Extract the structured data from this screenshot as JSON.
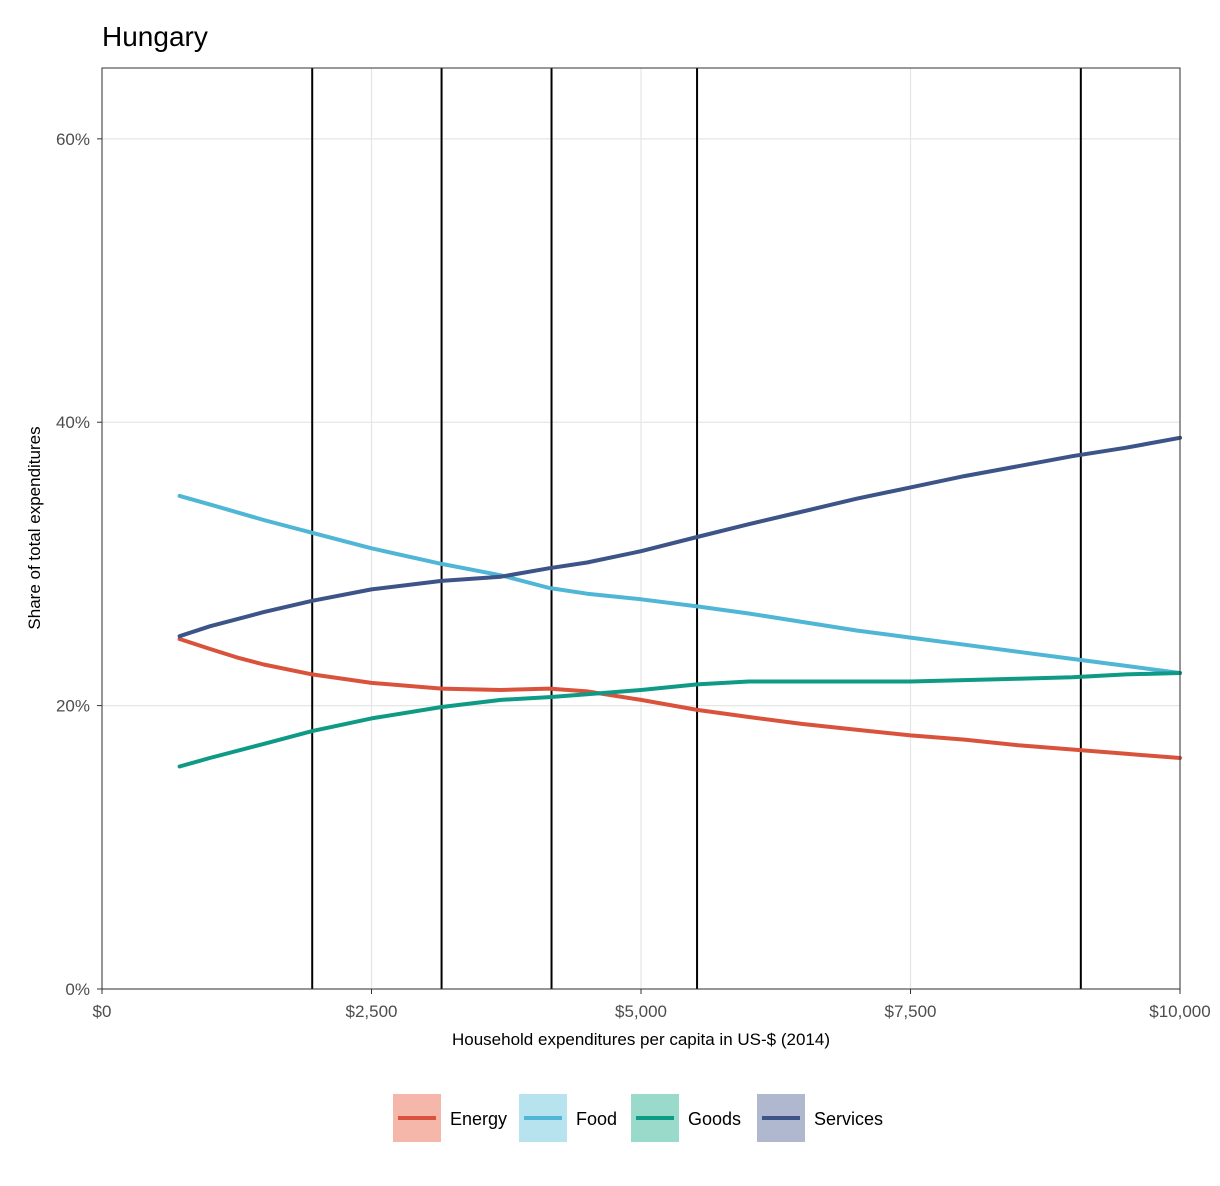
{
  "chart_data": {
    "type": "line",
    "title": "Hungary",
    "xlabel": "Household expenditures per capita in US-$ (2014)",
    "ylabel": "Share of total expenditures",
    "xlim": [
      0,
      10000
    ],
    "ylim": [
      0,
      0.65
    ],
    "x_ticks": [
      0,
      2500,
      5000,
      7500,
      10000
    ],
    "x_tick_labels": [
      "$0",
      "$2,500",
      "$5,000",
      "$7,500",
      "$10,000"
    ],
    "y_ticks": [
      0,
      0.2,
      0.4,
      0.6
    ],
    "y_tick_labels": [
      "0%",
      "20%",
      "40%",
      "60%"
    ],
    "grid": true,
    "legend_position": "bottom",
    "vertical_lines": [
      1950,
      3150,
      4170,
      5520,
      9080
    ],
    "series": [
      {
        "name": "Energy",
        "color": "#D9533C",
        "legend_fill": "#F4B7AA",
        "x": [
          720,
          1000,
          1250,
          1500,
          1950,
          2500,
          3150,
          3700,
          4150,
          4500,
          5000,
          5520,
          6000,
          6500,
          7000,
          7500,
          8000,
          8500,
          9000,
          9500,
          10000
        ],
        "y": [
          0.247,
          0.24,
          0.234,
          0.229,
          0.222,
          0.216,
          0.212,
          0.211,
          0.212,
          0.21,
          0.204,
          0.197,
          0.192,
          0.187,
          0.183,
          0.179,
          0.176,
          0.172,
          0.169,
          0.166,
          0.163
        ]
      },
      {
        "name": "Food",
        "color": "#4FB6D6",
        "legend_fill": "#B7E3EF",
        "x": [
          720,
          1000,
          1500,
          1950,
          2500,
          3150,
          3700,
          4150,
          4500,
          5000,
          5520,
          6000,
          6500,
          7000,
          7500,
          8000,
          8500,
          9000,
          9500,
          10000
        ],
        "y": [
          0.348,
          0.342,
          0.331,
          0.322,
          0.311,
          0.3,
          0.292,
          0.283,
          0.279,
          0.275,
          0.27,
          0.265,
          0.259,
          0.253,
          0.248,
          0.243,
          0.238,
          0.233,
          0.228,
          0.223
        ]
      },
      {
        "name": "Goods",
        "color": "#0F9A86",
        "legend_fill": "#99DACB",
        "x": [
          720,
          1000,
          1500,
          1950,
          2500,
          3150,
          3700,
          4150,
          4500,
          5000,
          5520,
          6000,
          6500,
          7000,
          7500,
          8000,
          8500,
          9000,
          9500,
          10000
        ],
        "y": [
          0.157,
          0.163,
          0.173,
          0.182,
          0.191,
          0.199,
          0.204,
          0.206,
          0.208,
          0.211,
          0.215,
          0.217,
          0.217,
          0.217,
          0.217,
          0.218,
          0.219,
          0.22,
          0.222,
          0.223
        ]
      },
      {
        "name": "Services",
        "color": "#3C5488",
        "legend_fill": "#AFB8CE",
        "x": [
          720,
          1000,
          1500,
          1950,
          2500,
          3150,
          3700,
          4150,
          4500,
          5000,
          5520,
          6000,
          6500,
          7000,
          7500,
          8000,
          8500,
          9000,
          9500,
          10000
        ],
        "y": [
          0.249,
          0.256,
          0.266,
          0.274,
          0.282,
          0.288,
          0.291,
          0.297,
          0.301,
          0.309,
          0.319,
          0.328,
          0.337,
          0.346,
          0.354,
          0.362,
          0.369,
          0.376,
          0.382,
          0.389
        ]
      }
    ]
  }
}
